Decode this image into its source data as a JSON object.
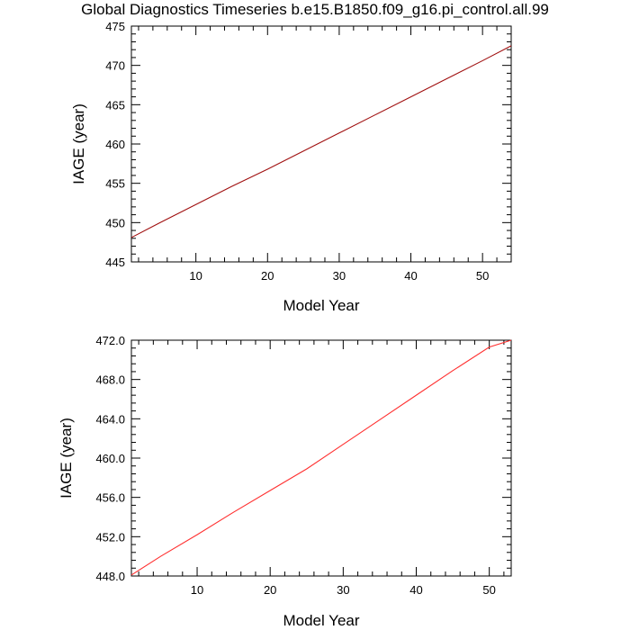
{
  "title": "Global Diagnostics Timeseries b.e15.B1850.f09_g16.pi_control.all.99",
  "chart_data": [
    {
      "type": "line",
      "xlabel": "Model Year",
      "ylabel": "IAGE (year)",
      "xlim": [
        1,
        54
      ],
      "ylim": [
        445,
        475
      ],
      "xticks": [
        10,
        20,
        30,
        40,
        50
      ],
      "yticks": [
        445,
        450,
        455,
        460,
        465,
        470,
        475
      ],
      "ytick_labels": [
        "445",
        "450",
        "455",
        "460",
        "465",
        "470",
        "475"
      ],
      "grid": false,
      "series": [
        {
          "color": "#a01010",
          "x": [
            1,
            5,
            10,
            15,
            20,
            25,
            30,
            35,
            40,
            45,
            50,
            54
          ],
          "y": [
            448.1,
            450.0,
            452.3,
            454.6,
            456.8,
            459.1,
            461.4,
            463.7,
            466.0,
            468.3,
            470.6,
            472.5
          ]
        }
      ]
    },
    {
      "type": "line",
      "xlabel": "Model Year",
      "ylabel": "IAGE (year)",
      "xlim": [
        1,
        53
      ],
      "ylim": [
        448.0,
        472.0
      ],
      "xticks": [
        10,
        20,
        30,
        40,
        50
      ],
      "yticks": [
        448,
        452,
        456,
        460,
        464,
        468,
        472
      ],
      "ytick_labels": [
        "448.0",
        "452.0",
        "456.0",
        "460.0",
        "464.0",
        "468.0",
        "472.0"
      ],
      "grid": false,
      "series": [
        {
          "color": "#ff3030",
          "x": [
            1,
            5,
            10,
            15,
            20,
            25,
            30,
            35,
            40,
            45,
            50,
            53
          ],
          "y": [
            448.1,
            450.0,
            452.2,
            454.5,
            456.7,
            458.9,
            461.4,
            463.9,
            466.4,
            468.9,
            471.3,
            472.0
          ]
        }
      ]
    }
  ]
}
